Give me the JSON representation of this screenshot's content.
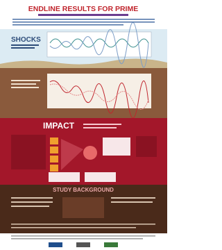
{
  "header": {
    "title": "ENDLINE RESULTS FOR PRIME"
  },
  "sections": [
    {
      "title": "SHOCKS"
    },
    {
      "title": "IMPACT"
    },
    {
      "title": "STUDY BACKGROUND"
    }
  ]
}
